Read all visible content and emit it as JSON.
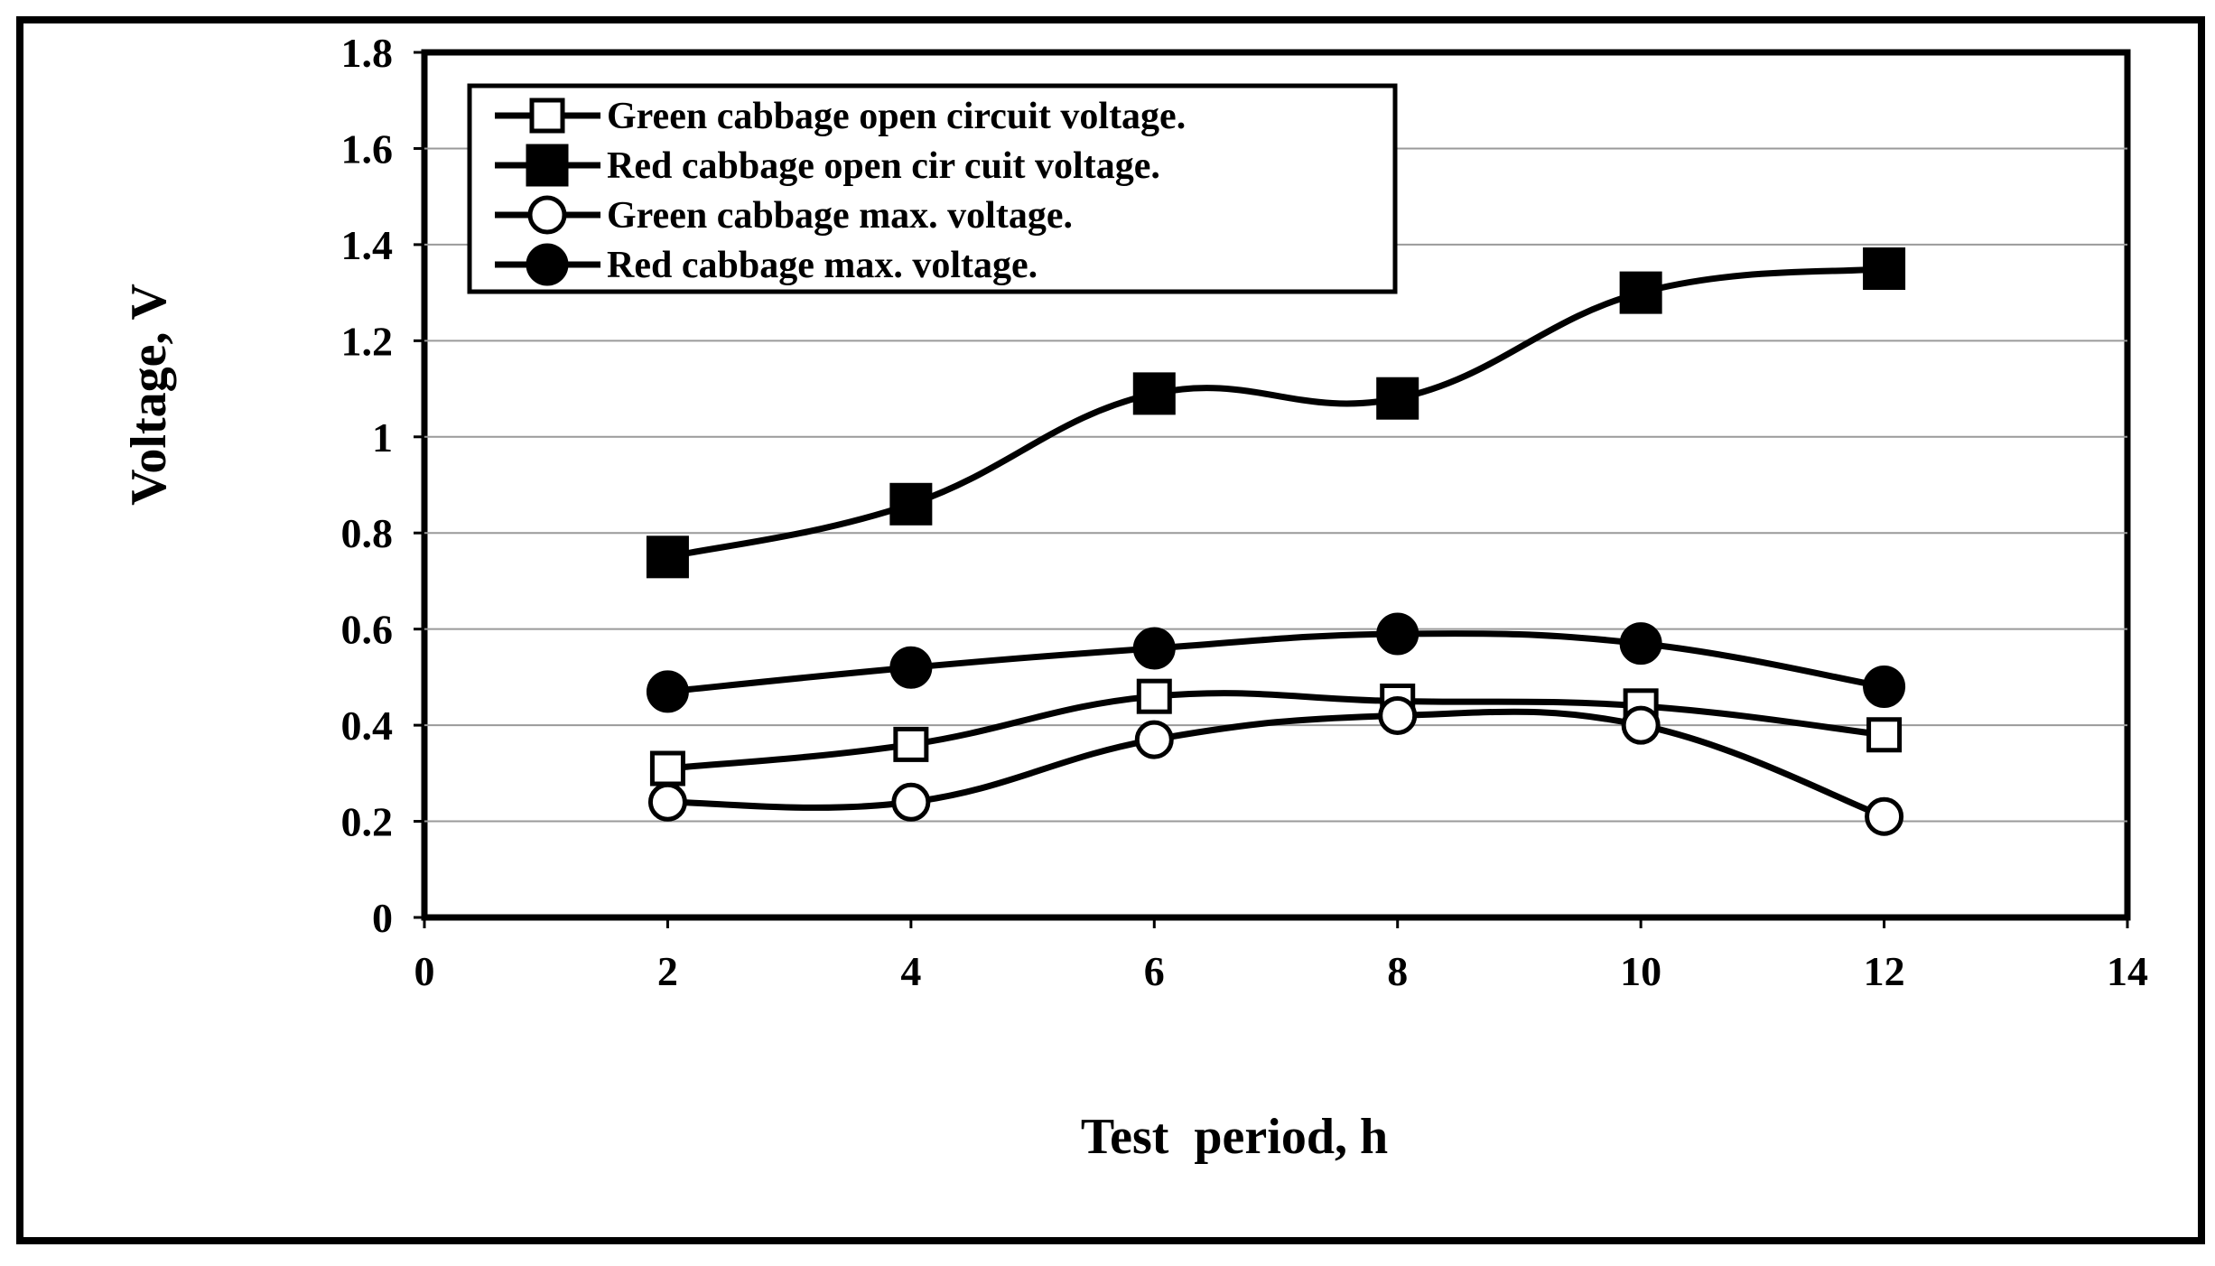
{
  "chart_data": {
    "type": "line",
    "title": "",
    "xlabel": "Test  period, h",
    "ylabel": "Voltage, V",
    "xlim": [
      0,
      14
    ],
    "ylim": [
      0,
      1.8
    ],
    "x_ticks": [
      "0",
      "2",
      "4",
      "6",
      "8",
      "10",
      "12",
      "14"
    ],
    "y_ticks": [
      "0",
      "0.2",
      "0.4",
      "0.6",
      "0.8",
      "1",
      "1.2",
      "1.4",
      "1.6",
      "1.8"
    ],
    "grid": "horizontal",
    "legend_position": "top-left",
    "x": [
      2,
      4,
      6,
      8,
      10,
      12
    ],
    "series": [
      {
        "name": "Green cabbage open circuit voltage.",
        "marker": "open-square",
        "color": "#000000",
        "values": [
          0.31,
          0.36,
          0.46,
          0.45,
          0.44,
          0.38
        ]
      },
      {
        "name": "Red cabbage open cir cuit voltage.",
        "marker": "filled-square",
        "color": "#000000",
        "values": [
          0.75,
          0.86,
          1.09,
          1.08,
          1.3,
          1.35
        ]
      },
      {
        "name": "Green cabbage max. voltage.",
        "marker": "open-circle",
        "color": "#000000",
        "values": [
          0.24,
          0.24,
          0.37,
          0.42,
          0.4,
          0.21
        ]
      },
      {
        "name": "Red cabbage max. voltage.",
        "marker": "filled-circle",
        "color": "#000000",
        "values": [
          0.47,
          0.52,
          0.56,
          0.59,
          0.57,
          0.48
        ]
      }
    ]
  }
}
